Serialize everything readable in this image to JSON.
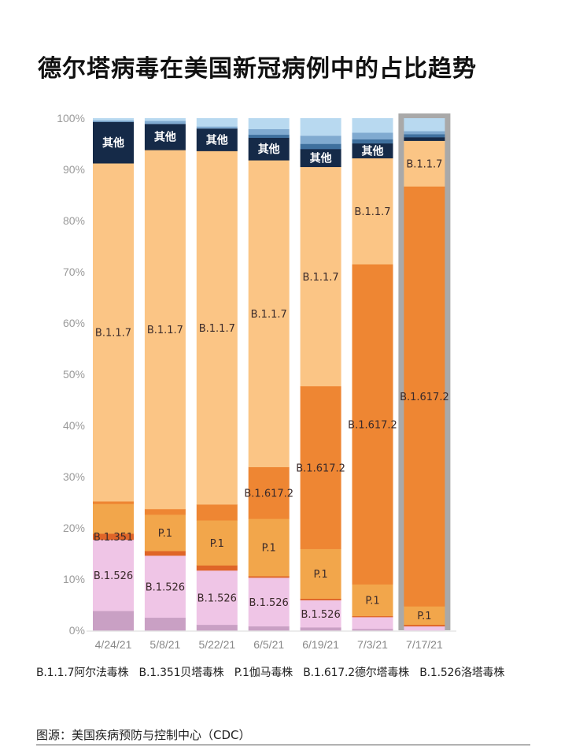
{
  "title": "德尔塔病毒在美国新冠病例中的占比趋势",
  "chart_data": {
    "type": "bar",
    "stacked": true,
    "title": "德尔塔病毒在美国新冠病例中的占比趋势",
    "xlabel": "",
    "ylabel": "",
    "ylim": [
      0,
      100
    ],
    "y_ticks": [
      "0%",
      "10%",
      "20%",
      "30%",
      "40%",
      "50%",
      "60%",
      "70%",
      "80%",
      "90%",
      "100%"
    ],
    "categories": [
      "4/24/21",
      "5/8/21",
      "5/22/21",
      "6/5/21",
      "6/19/21",
      "7/3/21",
      "7/17/21"
    ],
    "highlighted_category": "7/17/21",
    "series": [
      {
        "key": "minor",
        "color": "#c9a0c4",
        "values": [
          3.8,
          2.5,
          1.1,
          0.8,
          0.6,
          0.3,
          0.0
        ]
      },
      {
        "name": "B.1.526",
        "color": "#efc5e6",
        "values": [
          13.9,
          12.1,
          10.6,
          9.5,
          5.3,
          2.3,
          0.8
        ]
      },
      {
        "name": "B.1.351",
        "color": "#df6528",
        "values": [
          1.2,
          0.9,
          1.0,
          0.3,
          0.3,
          0.2,
          0.3
        ]
      },
      {
        "name": "P.1",
        "color": "#f2a64b",
        "values": [
          5.8,
          7.1,
          8.8,
          11.2,
          9.7,
          6.2,
          3.6
        ]
      },
      {
        "name": "B.1.617.2",
        "color": "#ee8633",
        "values": [
          0.5,
          1.1,
          3.1,
          10.1,
          31.8,
          62.5,
          82.0
        ]
      },
      {
        "name": "B.1.1.7",
        "color": "#fbc585",
        "values": [
          66.0,
          70.1,
          69.0,
          59.9,
          42.8,
          20.7,
          8.9
        ]
      },
      {
        "name": "其他",
        "color": "#152a48",
        "values": [
          8.1,
          5.1,
          4.4,
          4.4,
          3.5,
          2.9,
          0.7
        ]
      },
      {
        "key": "blue-dark",
        "color": "#3f709e",
        "values": [
          0,
          0,
          0,
          0.6,
          1.0,
          0.8,
          0.6
        ]
      },
      {
        "key": "blue-mid",
        "color": "#80aad0",
        "values": [
          0.3,
          0.6,
          0.4,
          1.1,
          1.6,
          1.3,
          0.6
        ]
      },
      {
        "key": "blue-light",
        "color": "#b8d9f0",
        "values": [
          0.4,
          0.5,
          1.6,
          2.1,
          3.4,
          2.8,
          2.5
        ]
      }
    ],
    "bar_labels": [
      [
        "B.1.526",
        "B.1.351",
        "B.1.1.7",
        "其他"
      ],
      [
        "B.1.526",
        "P.1",
        "B.1.1.7",
        "其他"
      ],
      [
        "B.1.526",
        "P.1",
        "B.1.1.7",
        "其他"
      ],
      [
        "B.1.526",
        "P.1",
        "B.1.617.2",
        "B.1.1.7",
        "其他"
      ],
      [
        "B.1.526",
        "P.1",
        "B.1.617.2",
        "B.1.1.7",
        "其他"
      ],
      [
        "P.1",
        "B.1.617.2",
        "B.1.1.7",
        "其他"
      ],
      [
        "P.1",
        "B.1.617.2",
        "B.1.1.7"
      ]
    ],
    "legend": [
      "B.1.1.7阿尔法毒株",
      "B.1.351贝塔毒株",
      "P.1伽马毒株",
      "B.1.617.2德尔塔毒株",
      "B.1.526洛塔毒株"
    ],
    "legend_position": "bottom",
    "grid": false
  },
  "source": "图源：美国疾病预防与控制中心（CDC）"
}
